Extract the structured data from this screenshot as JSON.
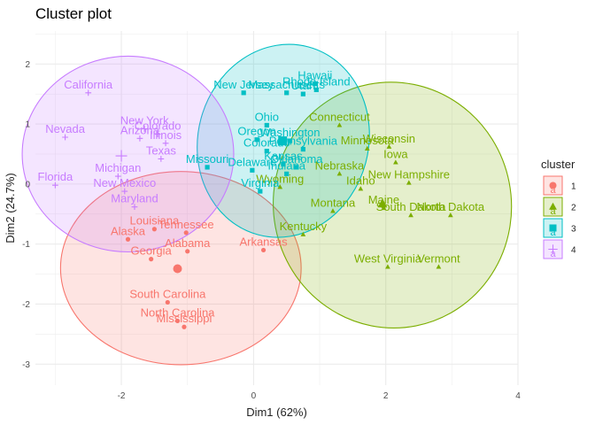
{
  "chart_data": {
    "type": "scatter",
    "title": "Cluster plot",
    "xlabel": "Dim1 (62%)",
    "ylabel": "Dim2 (24.7%)",
    "xlim": [
      -3.3,
      4.0
    ],
    "ylim": [
      -3.35,
      2.55
    ],
    "x_ticks": [
      -2,
      0,
      2,
      4
    ],
    "y_ticks": [
      -3,
      -2,
      -1,
      0,
      1,
      2
    ],
    "grid": true,
    "legend": {
      "title": "cluster",
      "position": "right",
      "entries": [
        "1",
        "2",
        "3",
        "4"
      ],
      "glyph_text": "a"
    },
    "colors": {
      "1": "#F8766D",
      "2": "#7CAE00",
      "3": "#00BFC4",
      "4": "#C77CFF"
    },
    "ellipses": [
      {
        "cluster": "1",
        "cx": -1.1,
        "cy": -1.4,
        "rx": 1.82,
        "ry": 1.61
      },
      {
        "cluster": "2",
        "cx": 2.1,
        "cy": -0.35,
        "rx": 1.8,
        "ry": 2.05,
        "angle": -11
      },
      {
        "cluster": "3",
        "cx": 0.45,
        "cy": 0.72,
        "rx": 1.29,
        "ry": 1.62,
        "angle": 15
      },
      {
        "cluster": "4",
        "cx": -1.9,
        "cy": 0.5,
        "rx": 1.6,
        "ry": 1.63
      }
    ],
    "centers": [
      {
        "cluster": "1",
        "x": -1.15,
        "y": -1.41
      },
      {
        "cluster": "2",
        "x": 1.95,
        "y": -0.33
      },
      {
        "cluster": "3",
        "x": 0.44,
        "y": 0.72
      },
      {
        "cluster": "4",
        "x": -2.0,
        "y": 0.47
      }
    ],
    "points": [
      {
        "name": "Alabama",
        "cluster": "1",
        "x": -1.0,
        "y": -1.12
      },
      {
        "name": "Alaska",
        "cluster": "1",
        "x": -1.9,
        "y": -0.92
      },
      {
        "name": "Arkansas",
        "cluster": "1",
        "x": 0.15,
        "y": -1.1
      },
      {
        "name": "Georgia",
        "cluster": "1",
        "x": -1.55,
        "y": -1.25
      },
      {
        "name": "Louisiana",
        "cluster": "1",
        "x": -1.5,
        "y": -0.75
      },
      {
        "name": "Mississippi",
        "cluster": "1",
        "x": -1.05,
        "y": -2.38
      },
      {
        "name": "North Carolina",
        "cluster": "1",
        "x": -1.15,
        "y": -2.28
      },
      {
        "name": "South Carolina",
        "cluster": "1",
        "x": -1.3,
        "y": -1.97
      },
      {
        "name": "Tennessee",
        "cluster": "1",
        "x": -1.02,
        "y": -0.81
      },
      {
        "name": "Connecticut",
        "cluster": "2",
        "x": 1.3,
        "y": 0.98
      },
      {
        "name": "Idaho",
        "cluster": "2",
        "x": 1.62,
        "y": -0.08
      },
      {
        "name": "Iowa",
        "cluster": "2",
        "x": 2.15,
        "y": 0.36
      },
      {
        "name": "Kentucky",
        "cluster": "2",
        "x": 0.75,
        "y": -0.84
      },
      {
        "name": "Maine",
        "cluster": "2",
        "x": 1.97,
        "y": -0.4
      },
      {
        "name": "Minnesota",
        "cluster": "2",
        "x": 1.72,
        "y": 0.59
      },
      {
        "name": "Montana",
        "cluster": "2",
        "x": 1.2,
        "y": -0.45
      },
      {
        "name": "Nebraska",
        "cluster": "2",
        "x": 1.3,
        "y": 0.17
      },
      {
        "name": "New Hampshire",
        "cluster": "2",
        "x": 2.35,
        "y": 0.02
      },
      {
        "name": "North Dakota",
        "cluster": "2",
        "x": 2.98,
        "y": -0.52
      },
      {
        "name": "South Dakota",
        "cluster": "2",
        "x": 2.38,
        "y": -0.52
      },
      {
        "name": "Vermont",
        "cluster": "2",
        "x": 2.8,
        "y": -1.38
      },
      {
        "name": "West Virginia",
        "cluster": "2",
        "x": 2.03,
        "y": -1.38
      },
      {
        "name": "Wisconsin",
        "cluster": "2",
        "x": 2.05,
        "y": 0.62
      },
      {
        "name": "Wyoming",
        "cluster": "2",
        "x": 0.4,
        "y": -0.05
      },
      {
        "name": "Colorado",
        "cluster": "3",
        "x": 0.2,
        "y": 0.55
      },
      {
        "name": "Delaware",
        "cluster": "3",
        "x": -0.02,
        "y": 0.23
      },
      {
        "name": "Hawaii",
        "cluster": "3",
        "x": 0.93,
        "y": 1.67
      },
      {
        "name": "Indiana",
        "cluster": "3",
        "x": 0.5,
        "y": 0.17
      },
      {
        "name": "Kansas",
        "cluster": "3",
        "x": 0.45,
        "y": 0.33
      },
      {
        "name": "Massachusetts",
        "cluster": "3",
        "x": 0.5,
        "y": 1.52
      },
      {
        "name": "Missouri",
        "cluster": "3",
        "x": -0.7,
        "y": 0.28
      },
      {
        "name": "New Jersey",
        "cluster": "3",
        "x": -0.15,
        "y": 1.52
      },
      {
        "name": "Ohio",
        "cluster": "3",
        "x": 0.2,
        "y": 0.98
      },
      {
        "name": "Oklahoma",
        "cluster": "3",
        "x": 0.65,
        "y": 0.28
      },
      {
        "name": "Oregon",
        "cluster": "3",
        "x": 0.05,
        "y": 0.74
      },
      {
        "name": "Pennsylvania",
        "cluster": "3",
        "x": 0.75,
        "y": 0.58
      },
      {
        "name": "Rhode Island",
        "cluster": "3",
        "x": 0.95,
        "y": 1.57
      },
      {
        "name": "Utah",
        "cluster": "3",
        "x": 0.75,
        "y": 1.5
      },
      {
        "name": "Virginia",
        "cluster": "3",
        "x": 0.1,
        "y": -0.12
      },
      {
        "name": "Washington",
        "cluster": "3",
        "x": 0.55,
        "y": 0.72
      },
      {
        "name": "Arizona",
        "cluster": "4",
        "x": -1.72,
        "y": 0.76
      },
      {
        "name": "California",
        "cluster": "4",
        "x": -2.5,
        "y": 1.52
      },
      {
        "name": "Colorado",
        "cluster": "4",
        "x": -1.45,
        "y": 0.83
      },
      {
        "name": "Florida",
        "cluster": "4",
        "x": -3.0,
        "y": -0.02
      },
      {
        "name": "Illinois",
        "cluster": "4",
        "x": -1.33,
        "y": 0.68
      },
      {
        "name": "Maryland",
        "cluster": "4",
        "x": -1.8,
        "y": -0.38
      },
      {
        "name": "Michigan",
        "cluster": "4",
        "x": -2.05,
        "y": 0.13
      },
      {
        "name": "Nevada",
        "cluster": "4",
        "x": -2.85,
        "y": 0.78
      },
      {
        "name": "New Mexico",
        "cluster": "4",
        "x": -1.95,
        "y": -0.12
      },
      {
        "name": "New York",
        "cluster": "4",
        "x": -1.65,
        "y": 0.92
      },
      {
        "name": "Texas",
        "cluster": "4",
        "x": -1.4,
        "y": 0.42
      }
    ]
  }
}
